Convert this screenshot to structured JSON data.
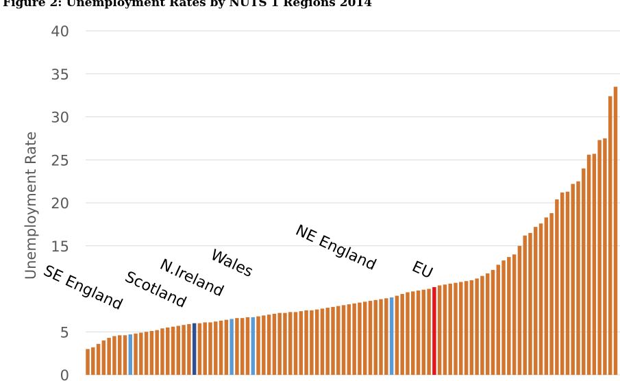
{
  "chart_data": {
    "type": "bar",
    "title": "Figure 2: Unemployment Rates by NUTS 1 Regions 2014",
    "ylabel": "Unemployment Rate",
    "xlabel": "",
    "ylim": [
      0,
      40
    ],
    "yticks": [
      0,
      5,
      15,
      20,
      25,
      30,
      35,
      40
    ],
    "grid": true,
    "legend": "none",
    "colors": {
      "default": "#d2762f",
      "uk_region": "#5b9bd5",
      "n_ireland": "#2f4f8f",
      "eu": "#e8121a",
      "grid": "#d9d9d9"
    },
    "values": [
      3.0,
      3.2,
      3.6,
      4.0,
      4.3,
      4.5,
      4.6,
      4.6,
      4.7,
      4.8,
      4.9,
      5.0,
      5.1,
      5.2,
      5.4,
      5.5,
      5.6,
      5.7,
      5.8,
      5.9,
      6.0,
      6.0,
      6.1,
      6.1,
      6.2,
      6.3,
      6.4,
      6.5,
      6.6,
      6.6,
      6.7,
      6.7,
      6.8,
      6.9,
      7.0,
      7.1,
      7.2,
      7.2,
      7.3,
      7.3,
      7.4,
      7.5,
      7.5,
      7.6,
      7.7,
      7.8,
      7.9,
      8.0,
      8.1,
      8.2,
      8.3,
      8.4,
      8.5,
      8.6,
      8.7,
      8.8,
      8.9,
      9.0,
      9.2,
      9.4,
      9.6,
      9.7,
      9.8,
      9.9,
      10.0,
      10.2,
      10.4,
      10.5,
      10.6,
      10.7,
      10.8,
      10.9,
      11.0,
      11.2,
      11.5,
      11.8,
      12.2,
      12.8,
      13.3,
      13.7,
      14.0,
      15.0,
      16.2,
      16.5,
      17.2,
      17.6,
      18.3,
      18.8,
      20.4,
      21.2,
      21.3,
      22.2,
      22.5,
      24.0,
      25.6,
      25.7,
      27.3,
      27.5,
      32.4,
      33.5
    ],
    "highlights": [
      {
        "index": 8,
        "color": "uk_region"
      },
      {
        "index": 20,
        "color": "n_ireland"
      },
      {
        "index": 27,
        "color": "uk_region"
      },
      {
        "index": 31,
        "color": "uk_region"
      },
      {
        "index": 57,
        "color": "uk_region"
      },
      {
        "index": 65,
        "color": "eu"
      }
    ],
    "annotations": [
      {
        "text": "SE England",
        "rotation": 25
      },
      {
        "text": "Scotland",
        "rotation": 25
      },
      {
        "text": "N.Ireland",
        "rotation": 25
      },
      {
        "text": "Wales",
        "rotation": 25
      },
      {
        "text": "NE England",
        "rotation": 25
      },
      {
        "text": "EU",
        "rotation": 25
      }
    ]
  }
}
